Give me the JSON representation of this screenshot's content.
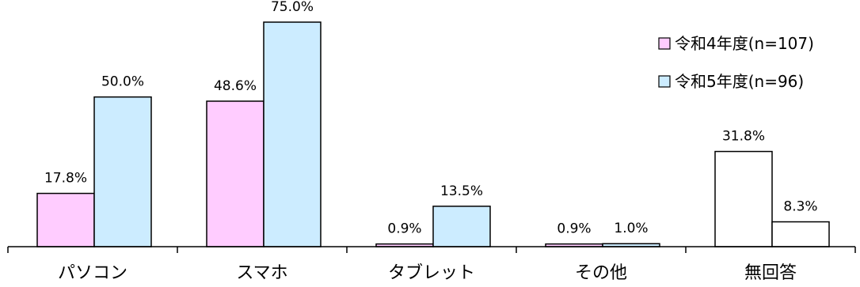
{
  "chart_data": {
    "type": "bar",
    "categories": [
      "パソコン",
      "スマホ",
      "タブレット",
      "その他",
      "無回答"
    ],
    "series": [
      {
        "name": "令和4年度(n=107)",
        "values": [
          17.8,
          48.6,
          0.9,
          0.9,
          31.8
        ],
        "labels": [
          "17.8%",
          "48.6%",
          "0.9%",
          "0.9%",
          "31.8%"
        ]
      },
      {
        "name": "令和5年度(n=96)",
        "values": [
          50.0,
          75.0,
          13.5,
          1.0,
          8.3
        ],
        "labels": [
          "50.0%",
          "75.0%",
          "13.5%",
          "1.0%",
          "8.3%"
        ]
      }
    ],
    "ylim": [
      0,
      75
    ],
    "grid": false,
    "legend_position": "top-right",
    "colors": {
      "series_0": "#ffccff",
      "series_1": "#ccecff",
      "no_answer": "#ffffff",
      "stroke": "#000000"
    }
  }
}
